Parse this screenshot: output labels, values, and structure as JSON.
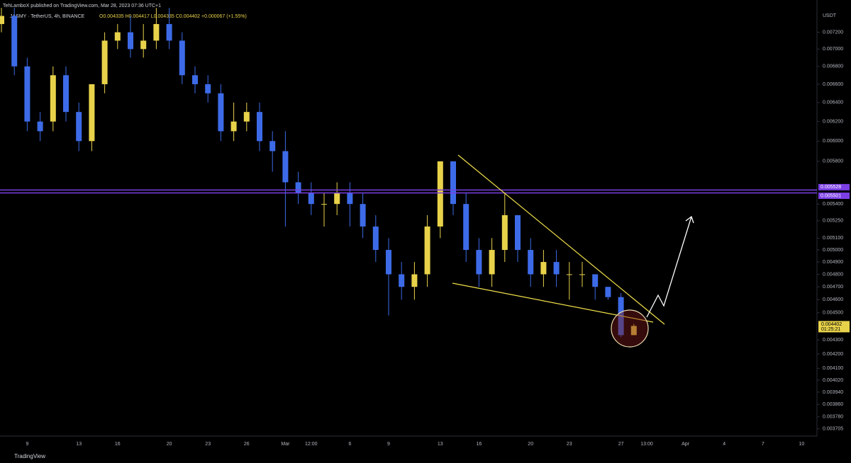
{
  "header": {
    "published": "TehLamboX published on TradingView.com, Mar 28, 2023 07:36 UTC+1",
    "symbol": "JASMY · TetherUS, 4h, BINANCE",
    "ohlc": "O0.004335 H0.004417 L0.004335 C0.004402 +0.000067 (+1.55%)"
  },
  "footer": "TradingView",
  "chart_data": {
    "type": "candlestick",
    "y_unit": "USDT",
    "log_scale": true,
    "grid": false,
    "up_color": "#e8d24a",
    "down_color": "#3d6be8",
    "categories": [
      null,
      null,
      "9",
      null,
      null,
      null,
      "13",
      null,
      null,
      "16",
      null,
      null,
      null,
      "20",
      null,
      null,
      "23",
      null,
      null,
      "26",
      null,
      null,
      "Mar",
      null,
      "12:00",
      null,
      null,
      "6",
      null,
      null,
      "9",
      null,
      null,
      null,
      "13",
      null,
      null,
      "16",
      null,
      null,
      null,
      "20",
      null,
      null,
      "23",
      null,
      null,
      null,
      "27",
      null,
      "13:00",
      null,
      null,
      "Apr",
      null,
      null,
      "4",
      null,
      null,
      "7",
      null,
      null,
      "10"
    ],
    "open": [
      0.0073,
      0.0074,
      0.0068,
      0.0062,
      0.0062,
      0.0067,
      0.0063,
      0.006,
      0.0066,
      0.0071,
      0.0072,
      0.007,
      0.0071,
      0.0073,
      0.0071,
      0.0067,
      0.0066,
      0.0065,
      0.0061,
      0.0062,
      0.0063,
      0.006,
      0.0059,
      0.0056,
      0.0055,
      0.0054,
      0.0054,
      0.0055,
      0.0054,
      0.0052,
      0.005,
      0.0048,
      0.0047,
      0.0048,
      0.0052,
      0.0058,
      0.0054,
      0.005,
      0.0048,
      0.005,
      0.0053,
      0.005,
      0.0048,
      0.0049,
      0.0048,
      0.0048,
      0.0048,
      0.0047,
      0.00462,
      0.004335,
      null,
      null,
      null,
      null,
      null,
      null,
      null,
      null,
      null,
      null,
      null,
      null,
      null
    ],
    "high": [
      0.0075,
      0.0075,
      0.0069,
      0.0063,
      0.0068,
      0.0068,
      0.0064,
      0.0066,
      0.0072,
      0.0073,
      0.0074,
      0.0073,
      0.0075,
      0.0075,
      0.0072,
      0.0068,
      0.0067,
      0.0066,
      0.0064,
      0.0064,
      0.0064,
      0.0061,
      0.0061,
      0.0057,
      0.0056,
      0.0055,
      0.0056,
      0.0056,
      0.0055,
      0.0053,
      0.0051,
      0.0049,
      0.0049,
      0.0053,
      0.0058,
      0.0058,
      0.0055,
      0.0051,
      0.0051,
      0.0055,
      0.0053,
      0.0051,
      0.005,
      0.005,
      0.0049,
      0.0049,
      0.0048,
      0.0047,
      0.00465,
      0.004417,
      null,
      null,
      null,
      null,
      null,
      null,
      null,
      null,
      null,
      null,
      null,
      null,
      null
    ],
    "low": [
      0.0072,
      0.0067,
      0.0061,
      0.006,
      0.0061,
      0.0062,
      0.0059,
      0.0059,
      0.0065,
      0.007,
      0.0069,
      0.0069,
      0.007,
      0.007,
      0.0066,
      0.0065,
      0.0064,
      0.006,
      0.006,
      0.0061,
      0.0059,
      0.0057,
      0.0052,
      0.0054,
      0.0053,
      0.0052,
      0.0053,
      0.0052,
      0.0051,
      0.0049,
      0.00448,
      0.0046,
      0.0046,
      0.0047,
      0.0051,
      0.0053,
      0.0049,
      0.0047,
      0.0047,
      0.0049,
      0.0049,
      0.0047,
      0.0047,
      0.0047,
      0.0046,
      0.0047,
      0.0046,
      0.0046,
      0.00432,
      0.004335,
      null,
      null,
      null,
      null,
      null,
      null,
      null,
      null,
      null,
      null,
      null,
      null,
      null
    ],
    "close": [
      0.0074,
      0.0068,
      0.0062,
      0.0061,
      0.0067,
      0.0063,
      0.006,
      0.0066,
      0.0071,
      0.0072,
      0.007,
      0.0071,
      0.0073,
      0.0071,
      0.0067,
      0.0066,
      0.0065,
      0.0061,
      0.0062,
      0.0063,
      0.006,
      0.0059,
      0.0056,
      0.0055,
      0.0054,
      0.0054,
      0.0055,
      0.0054,
      0.0052,
      0.005,
      0.0048,
      0.0047,
      0.0048,
      0.0052,
      0.0058,
      0.0054,
      0.005,
      0.0048,
      0.005,
      0.0053,
      0.005,
      0.0048,
      0.0049,
      0.0048,
      0.0048,
      0.0048,
      0.0047,
      0.00462,
      0.004335,
      0.004402,
      null,
      null,
      null,
      null,
      null,
      null,
      null,
      null,
      null,
      null,
      null,
      null,
      null
    ],
    "ylim": [
      0.0036,
      0.0076
    ],
    "yticks": [
      {
        "value": 0.0072,
        "label": "0.007200"
      },
      {
        "value": 0.007,
        "label": "0.007000"
      },
      {
        "value": 0.0068,
        "label": "0.006800"
      },
      {
        "value": 0.0066,
        "label": "0.006600"
      },
      {
        "value": 0.0064,
        "label": "0.006400"
      },
      {
        "value": 0.0062,
        "label": "0.006200"
      },
      {
        "value": 0.006,
        "label": "0.006000"
      },
      {
        "value": 0.0058,
        "label": "0.005800"
      },
      {
        "value": 0.0054,
        "label": "0.005400"
      },
      {
        "value": 0.00525,
        "label": "0.005250"
      },
      {
        "value": 0.0051,
        "label": "0.005100"
      },
      {
        "value": 0.005,
        "label": "0.005000"
      },
      {
        "value": 0.0049,
        "label": "0.004900"
      },
      {
        "value": 0.0048,
        "label": "0.004800"
      },
      {
        "value": 0.0047,
        "label": "0.004700"
      },
      {
        "value": 0.0046,
        "label": "0.004600"
      },
      {
        "value": 0.0045,
        "label": "0.004500"
      },
      {
        "value": 0.0043,
        "label": "0.004300"
      },
      {
        "value": 0.0042,
        "label": "0.004200"
      },
      {
        "value": 0.0041,
        "label": "0.004100"
      },
      {
        "value": 0.00402,
        "label": "0.004020"
      },
      {
        "value": 0.00394,
        "label": "0.003940"
      },
      {
        "value": 0.00386,
        "label": "0.003860"
      },
      {
        "value": 0.00378,
        "label": "0.003780"
      },
      0.003705
    ],
    "price_lines": [
      {
        "value": 0.005528,
        "color": "#7b3fe4"
      },
      {
        "value": 0.005501,
        "color": "#7b3fe4"
      }
    ],
    "countdown": "01:25:21"
  }
}
